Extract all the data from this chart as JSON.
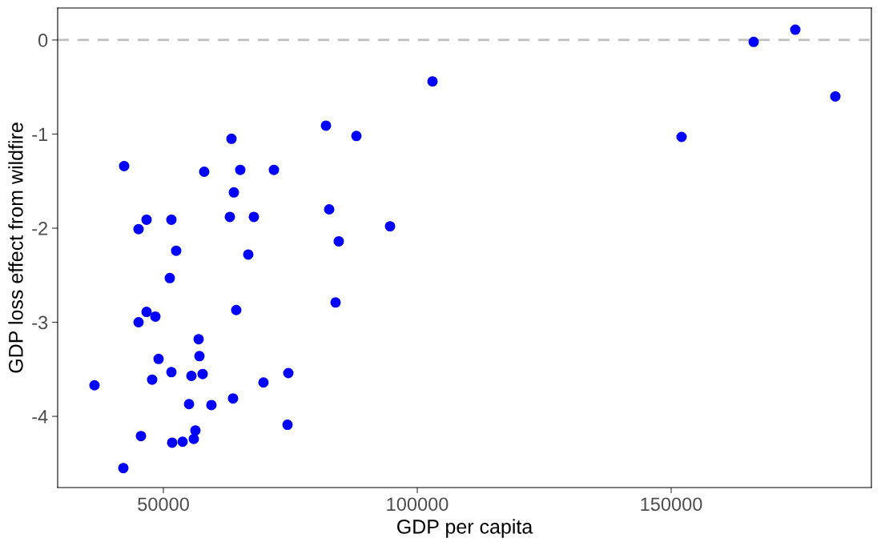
{
  "chart_data": {
    "type": "scatter",
    "xlabel": "GDP per capita",
    "ylabel": "GDP loss effect from wildfire",
    "xlim": [
      29180,
      189430
    ],
    "ylim": [
      -4.757,
      0.34
    ],
    "xticks": [
      50000,
      100000,
      150000
    ],
    "yticks": [
      -4,
      -3,
      -2,
      -1,
      0
    ],
    "grid": false,
    "marker": "circle",
    "ref_lines": [
      {
        "axis": "y",
        "value": 0,
        "color": "#bebebe",
        "line_style": "dashed"
      }
    ],
    "series": [
      {
        "color": "#0000ff",
        "x": [
          36435,
          42113,
          42270,
          45110,
          45584,
          45110,
          46690,
          46690,
          47790,
          48420,
          49050,
          51260,
          51580,
          51580,
          51730,
          52520,
          53790,
          55050,
          55520,
          55990,
          56310,
          56940,
          57100,
          57730,
          58040,
          59460,
          63090,
          63410,
          63720,
          63880,
          64350,
          65140,
          66720,
          67820,
          69710,
          71770,
          74610,
          74450,
          82020,
          82650,
          84540,
          83910,
          88010,
          94640,
          103000,
          152050,
          166250,
          174450,
          182330
        ],
        "values": [
          -3.67,
          -4.55,
          -1.34,
          -2.01,
          -4.21,
          -3.0,
          -1.91,
          -2.89,
          -3.61,
          -2.94,
          -3.39,
          -2.53,
          -1.91,
          -3.53,
          -4.28,
          -2.24,
          -4.27,
          -3.87,
          -3.57,
          -4.24,
          -4.15,
          -3.18,
          -3.36,
          -3.55,
          -1.4,
          -3.88,
          -1.88,
          -1.05,
          -3.81,
          -1.62,
          -2.87,
          -1.38,
          -2.28,
          -1.88,
          -3.64,
          -1.38,
          -3.54,
          -4.09,
          -0.91,
          -1.8,
          -2.14,
          -2.79,
          -1.02,
          -1.98,
          -0.44,
          -1.03,
          -0.02,
          0.11,
          -0.6
        ]
      }
    ]
  }
}
